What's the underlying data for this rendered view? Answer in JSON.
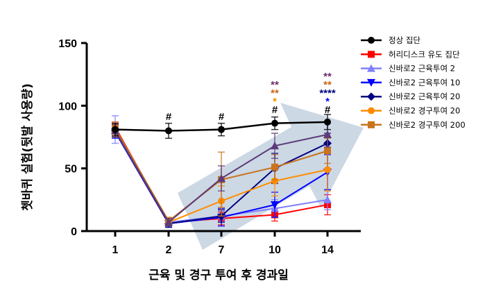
{
  "chart_data": {
    "type": "line",
    "categories": [
      "1",
      "2",
      "7",
      "10",
      "14"
    ],
    "xlabel": "근육 및 경구 투여 후 경과일",
    "ylabel": "쳇바퀴 실험(뒷발 사용량)",
    "ylim": [
      0,
      150
    ],
    "yticks": [
      0,
      50,
      100,
      150
    ],
    "grid": false,
    "legend_position": "right",
    "series": [
      {
        "name": "정상 집단",
        "color": "#000000",
        "marker": "circle",
        "values": [
          81,
          80,
          81,
          86,
          87
        ],
        "errors": [
          5,
          6,
          5,
          5,
          6
        ]
      },
      {
        "name": "허리디스크 유도 집단",
        "color": "#ff0000",
        "marker": "square",
        "values": [
          83,
          7,
          10,
          13,
          21
        ],
        "errors": [
          4,
          3,
          5,
          5,
          8
        ]
      },
      {
        "name": "신바로2 근육투여 2",
        "color": "#8080ff",
        "marker": "triangle-up",
        "values": [
          81,
          7,
          12,
          18,
          25
        ],
        "errors": [
          11,
          3,
          4,
          7,
          8
        ]
      },
      {
        "name": "신바로2 근육투여 10",
        "color": "#0000ff",
        "marker": "triangle-down",
        "values": [
          79,
          6,
          11,
          21,
          47
        ],
        "errors": [
          5,
          3,
          7,
          10,
          14
        ]
      },
      {
        "name": "신바로2 근육투여 20",
        "color": "#000080",
        "marker": "diamond",
        "values": [
          80,
          6,
          12,
          50,
          70
        ],
        "errors": [
          5,
          3,
          5,
          12,
          8
        ]
      },
      {
        "name": "신바로2 경구투여 20",
        "color": "#ff8c00",
        "marker": "circle",
        "values": [
          80,
          7,
          24,
          40,
          49
        ],
        "errors": [
          5,
          3,
          12,
          12,
          17
        ]
      },
      {
        "name": "신바로2 경구투여 200",
        "color": "#c8731e",
        "marker": "square",
        "values": [
          82,
          8,
          41,
          51,
          64
        ],
        "errors": [
          5,
          3,
          22,
          10,
          10
        ]
      },
      {
        "name": "",
        "color": "#5c3a7a",
        "marker": "triangle-up",
        "values": [
          80,
          7,
          42,
          68,
          77
        ],
        "errors": [
          5,
          3,
          10,
          10,
          10
        ]
      }
    ],
    "annotations": [
      {
        "category": "2",
        "labels": [
          {
            "text": "#",
            "color": "#000000"
          }
        ]
      },
      {
        "category": "7",
        "labels": [
          {
            "text": "#",
            "color": "#000000"
          }
        ]
      },
      {
        "category": "10",
        "labels": [
          {
            "text": "**",
            "color": "#6a2a6a"
          },
          {
            "text": "**",
            "color": "#c86414"
          },
          {
            "text": "*",
            "color": "#ff8c00"
          },
          {
            "text": "#",
            "color": "#000000"
          }
        ]
      },
      {
        "category": "14",
        "labels": [
          {
            "text": "**",
            "color": "#6a2a6a"
          },
          {
            "text": "**",
            "color": "#c86414"
          },
          {
            "text": "****",
            "color": "#000080"
          },
          {
            "text": "*",
            "color": "#0000ff"
          },
          {
            "text": "#",
            "color": "#000000"
          }
        ]
      }
    ]
  }
}
